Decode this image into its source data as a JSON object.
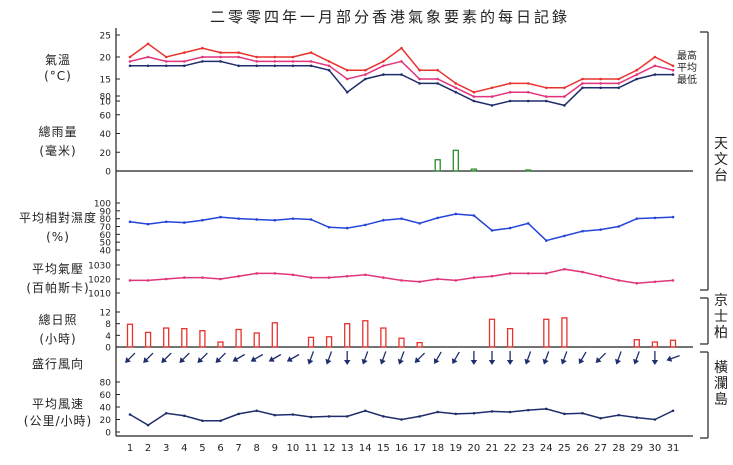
{
  "title": "二零零四年一月部分香港氣象要素的每日記錄",
  "days": [
    "1",
    "2",
    "3",
    "4",
    "5",
    "6",
    "7",
    "8",
    "9",
    "10",
    "11",
    "12",
    "13",
    "14",
    "15",
    "16",
    "17",
    "18",
    "19",
    "20",
    "21",
    "22",
    "23",
    "24",
    "25",
    "26",
    "27",
    "28",
    "29",
    "30",
    "31"
  ],
  "stations": [
    {
      "label": "天文台",
      "key": "observatory"
    },
    {
      "label": "京士柏",
      "key": "kings_park"
    },
    {
      "label": "橫瀾島",
      "key": "waglan"
    }
  ],
  "chart_data": [
    {
      "type": "line",
      "panel": "temperature",
      "ylabel": "氣溫 (°C)",
      "yticks": [
        10,
        15,
        20,
        25
      ],
      "ylim": [
        10,
        25
      ],
      "series": [
        {
          "name": "最高",
          "color": "#e8322e",
          "values": [
            20,
            23,
            20,
            21,
            22,
            21,
            21,
            20,
            20,
            20,
            21,
            19,
            17,
            17,
            19,
            22,
            17,
            17,
            14,
            12,
            13,
            14,
            14,
            13,
            13,
            15,
            15,
            15,
            17,
            20,
            18
          ]
        },
        {
          "name": "平均",
          "color": "#e0357a",
          "values": [
            19,
            20,
            19,
            19,
            20,
            20,
            20,
            19,
            19,
            19,
            19,
            18,
            15,
            16,
            18,
            19,
            15,
            15,
            13,
            11,
            11,
            12,
            12,
            11,
            11,
            14,
            14,
            14,
            16,
            18,
            17
          ]
        },
        {
          "name": "最低",
          "color": "#1f2d6b",
          "values": [
            18,
            18,
            18,
            18,
            19,
            19,
            18,
            18,
            18,
            18,
            18,
            17,
            12,
            15,
            16,
            16,
            14,
            14,
            12,
            10,
            9,
            10,
            10,
            10,
            9,
            13,
            13,
            13,
            15,
            16,
            16
          ]
        }
      ]
    },
    {
      "type": "bar",
      "panel": "rainfall",
      "ylabel": "總雨量 (毫米)",
      "yticks": [
        0,
        20,
        40,
        60,
        80
      ],
      "ylim": [
        0,
        80
      ],
      "color": "#2e8b2e",
      "values": [
        0,
        0,
        0,
        0,
        0,
        0,
        0,
        0,
        0,
        0,
        0,
        0,
        0,
        0,
        0,
        0,
        0,
        12,
        22,
        2,
        0,
        0,
        1,
        0,
        0,
        0,
        0,
        0,
        0,
        0,
        0
      ]
    },
    {
      "type": "line",
      "panel": "humidity",
      "ylabel": "平均相對濕度 (%)",
      "yticks": [
        40,
        50,
        60,
        70,
        80,
        90,
        100
      ],
      "ylim": [
        40,
        100
      ],
      "color": "#2345d8",
      "values": [
        76,
        73,
        76,
        75,
        78,
        82,
        80,
        79,
        78,
        80,
        79,
        69,
        68,
        72,
        78,
        80,
        74,
        81,
        86,
        84,
        65,
        68,
        74,
        52,
        58,
        64,
        66,
        70,
        80,
        81,
        82
      ]
    },
    {
      "type": "line",
      "panel": "pressure",
      "ylabel": "平均氣壓 (百帕斯卡)",
      "yticks": [
        1010,
        1020,
        1030
      ],
      "ylim": [
        1010,
        1030
      ],
      "color": "#e0357a",
      "values": [
        1019,
        1019,
        1020,
        1021,
        1021,
        1020,
        1022,
        1024,
        1024,
        1023,
        1021,
        1021,
        1022,
        1023,
        1021,
        1019,
        1018,
        1020,
        1019,
        1021,
        1022,
        1024,
        1024,
        1024,
        1027,
        1025,
        1022,
        1019,
        1017,
        1018,
        1019
      ]
    },
    {
      "type": "bar",
      "panel": "sunshine",
      "ylabel": "總日照 (小時)",
      "yticks": [
        0,
        4,
        8,
        12
      ],
      "ylim": [
        0,
        12
      ],
      "color": "#e8322e",
      "values": [
        7.8,
        5.0,
        6.5,
        6.3,
        5.6,
        1.7,
        6.0,
        4.8,
        8.3,
        0,
        3.3,
        3.5,
        8.0,
        9.0,
        6.5,
        3.0,
        1.5,
        0,
        0,
        0,
        9.5,
        6.3,
        0,
        9.5,
        10.0,
        0,
        0,
        0,
        2.5,
        1.7,
        2.3
      ]
    },
    {
      "type": "table",
      "panel": "prevailing_wind",
      "ylabel": "盛行風向",
      "directions_deg": [
        45,
        45,
        45,
        45,
        45,
        45,
        60,
        60,
        60,
        60,
        20,
        20,
        0,
        20,
        20,
        20,
        45,
        30,
        30,
        0,
        0,
        0,
        20,
        20,
        20,
        30,
        45,
        20,
        20,
        0,
        70
      ]
    },
    {
      "type": "line",
      "panel": "wind_speed",
      "ylabel": "平均風速 (公里/小時)",
      "yticks": [
        0,
        20,
        40,
        60,
        80
      ],
      "ylim": [
        0,
        80
      ],
      "color": "#1f2d6b",
      "values": [
        28,
        11,
        30,
        26,
        18,
        18,
        29,
        34,
        27,
        28,
        24,
        25,
        25,
        34,
        25,
        20,
        25,
        32,
        29,
        30,
        33,
        32,
        35,
        37,
        29,
        30,
        22,
        27,
        23,
        20,
        34
      ]
    }
  ]
}
